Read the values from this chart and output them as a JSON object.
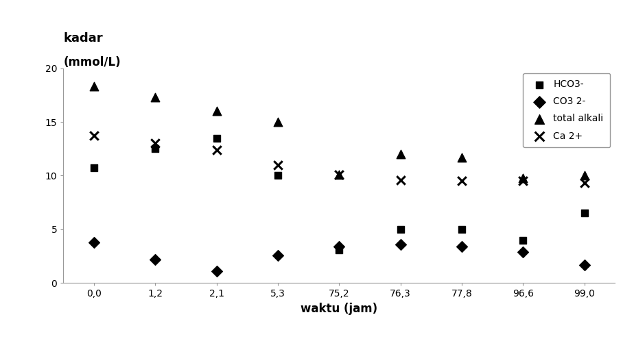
{
  "x_labels": [
    "0,0",
    "1,2",
    "2,1",
    "5,3",
    "75,2",
    "76,3",
    "77,8",
    "96,6",
    "99,0"
  ],
  "x_positions": [
    0,
    1,
    2,
    3,
    4,
    5,
    6,
    7,
    8
  ],
  "series": {
    "HCO3-": {
      "marker": "s",
      "color": "#000000",
      "values": [
        10.7,
        12.5,
        13.5,
        10.0,
        3.1,
        5.0,
        5.0,
        4.0,
        6.5
      ]
    },
    "CO3 2-": {
      "marker": "D",
      "color": "#000000",
      "values": [
        3.8,
        2.2,
        1.1,
        2.6,
        3.4,
        3.6,
        3.4,
        2.9,
        1.7
      ]
    },
    "total alkali": {
      "marker": "^",
      "color": "#000000",
      "values": [
        18.3,
        17.3,
        16.0,
        15.0,
        10.1,
        12.0,
        11.7,
        9.8,
        10.0
      ]
    },
    "Ca 2+": {
      "marker": "x",
      "color": "#000000",
      "values": [
        13.7,
        13.0,
        12.4,
        11.0,
        10.1,
        9.6,
        9.5,
        9.5,
        9.3
      ]
    }
  },
  "xlabel": "waktu (jam)",
  "ylabel_line1": "kadar",
  "ylabel_line2": "(mmol/L)",
  "ylim": [
    0,
    20
  ],
  "yticks": [
    0,
    5,
    10,
    15,
    20
  ],
  "background_color": "#ffffff",
  "legend_order": [
    "HCO3-",
    "CO3 2-",
    "total alkali",
    "Ca 2+"
  ]
}
